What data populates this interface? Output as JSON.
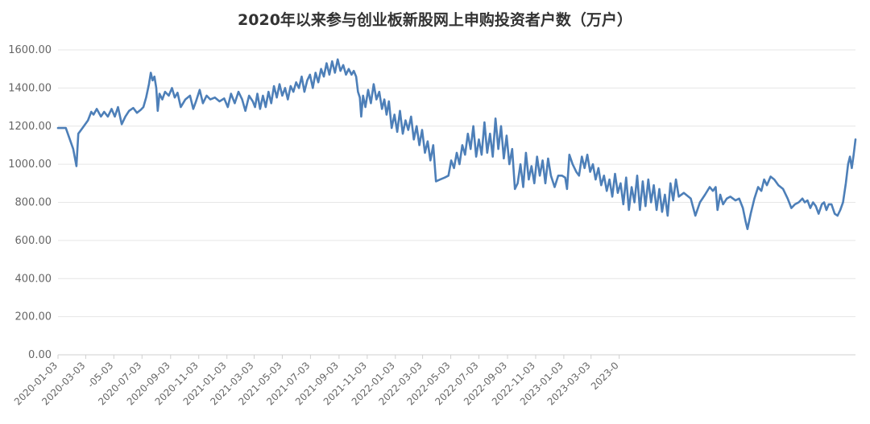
{
  "chart_data": {
    "type": "line",
    "title": "2020年以来参与创业板新股网上申购投资者户数（万户）",
    "xlabel": "",
    "ylabel": "",
    "ylim": [
      0,
      1600
    ],
    "y_ticks": [
      "0.00",
      "200.00",
      "400.00",
      "600.00",
      "800.00",
      "1000.00",
      "1200.00",
      "1400.00",
      "1600.00"
    ],
    "x_ticks": [
      "2020-01-03",
      "2020-03-03",
      "2020-05-03",
      "2020-07-03",
      "2020-09-03",
      "2020-11-03",
      "2021-01-03",
      "2021-03-03",
      "2021-05-03",
      "2021-07-03",
      "2021-09-03",
      "2021-11-03",
      "2022-01-03",
      "2022-03-03",
      "2022-05-03",
      "2022-07-03",
      "2022-09-03",
      "2022-11-03",
      "2023-01-03",
      "2023-03-03",
      "2023-05-03"
    ],
    "x_tick_labels": [
      "2020-01-03",
      "2020-03-03",
      "-05-03",
      "2020-07-03",
      "2020-09-03",
      "2020-11-03",
      "2021-01-03",
      "2021-03-03",
      "2021-05-03",
      "2021-07-03",
      "2021-09-03",
      "2021-11-03",
      "2022-01-03",
      "2022-03-03",
      "2022-05-03",
      "2022-07-03",
      "2022-09-03",
      "2022-11-03",
      "2023-01-03",
      "2023-03-03",
      "2023-0"
    ],
    "grid": true,
    "series": [
      {
        "color": "#4d7fb8",
        "points": [
          [
            "2020-01-03",
            1190
          ],
          [
            "2020-01-20",
            1190
          ],
          [
            "2020-02-05",
            1080
          ],
          [
            "2020-02-12",
            990
          ],
          [
            "2020-02-16",
            1160
          ],
          [
            "2020-02-25",
            1190
          ],
          [
            "2020-03-08",
            1230
          ],
          [
            "2020-03-15",
            1275
          ],
          [
            "2020-03-20",
            1260
          ],
          [
            "2020-03-27",
            1290
          ],
          [
            "2020-04-05",
            1250
          ],
          [
            "2020-04-12",
            1275
          ],
          [
            "2020-04-20",
            1250
          ],
          [
            "2020-04-28",
            1290
          ],
          [
            "2020-05-05",
            1250
          ],
          [
            "2020-05-12",
            1300
          ],
          [
            "2020-05-20",
            1210
          ],
          [
            "2020-05-28",
            1250
          ],
          [
            "2020-06-05",
            1280
          ],
          [
            "2020-06-14",
            1295
          ],
          [
            "2020-06-22",
            1270
          ],
          [
            "2020-06-30",
            1285
          ],
          [
            "2020-07-06",
            1300
          ],
          [
            "2020-07-12",
            1350
          ],
          [
            "2020-07-18",
            1420
          ],
          [
            "2020-07-22",
            1480
          ],
          [
            "2020-07-26",
            1440
          ],
          [
            "2020-07-30",
            1460
          ],
          [
            "2020-08-03",
            1400
          ],
          [
            "2020-08-06",
            1280
          ],
          [
            "2020-08-10",
            1370
          ],
          [
            "2020-08-16",
            1340
          ],
          [
            "2020-08-22",
            1380
          ],
          [
            "2020-08-30",
            1360
          ],
          [
            "2020-09-06",
            1400
          ],
          [
            "2020-09-12",
            1350
          ],
          [
            "2020-09-18",
            1375
          ],
          [
            "2020-09-25",
            1300
          ],
          [
            "2020-10-05",
            1340
          ],
          [
            "2020-10-15",
            1360
          ],
          [
            "2020-10-22",
            1290
          ],
          [
            "2020-10-28",
            1330
          ],
          [
            "2020-11-05",
            1390
          ],
          [
            "2020-11-12",
            1320
          ],
          [
            "2020-11-20",
            1360
          ],
          [
            "2020-11-28",
            1340
          ],
          [
            "2020-12-08",
            1350
          ],
          [
            "2020-12-18",
            1330
          ],
          [
            "2020-12-28",
            1345
          ],
          [
            "2021-01-05",
            1300
          ],
          [
            "2021-01-12",
            1370
          ],
          [
            "2021-01-20",
            1320
          ],
          [
            "2021-01-28",
            1380
          ],
          [
            "2021-02-05",
            1340
          ],
          [
            "2021-02-12",
            1280
          ],
          [
            "2021-02-20",
            1360
          ],
          [
            "2021-02-28",
            1330
          ],
          [
            "2021-03-05",
            1300
          ],
          [
            "2021-03-10",
            1370
          ],
          [
            "2021-03-16",
            1290
          ],
          [
            "2021-03-22",
            1360
          ],
          [
            "2021-03-28",
            1300
          ],
          [
            "2021-04-03",
            1380
          ],
          [
            "2021-04-09",
            1320
          ],
          [
            "2021-04-15",
            1410
          ],
          [
            "2021-04-21",
            1350
          ],
          [
            "2021-04-27",
            1420
          ],
          [
            "2021-05-03",
            1360
          ],
          [
            "2021-05-09",
            1400
          ],
          [
            "2021-05-15",
            1340
          ],
          [
            "2021-05-21",
            1410
          ],
          [
            "2021-05-27",
            1380
          ],
          [
            "2021-06-02",
            1430
          ],
          [
            "2021-06-08",
            1400
          ],
          [
            "2021-06-14",
            1460
          ],
          [
            "2021-06-20",
            1380
          ],
          [
            "2021-06-26",
            1440
          ],
          [
            "2021-07-02",
            1470
          ],
          [
            "2021-07-08",
            1400
          ],
          [
            "2021-07-14",
            1480
          ],
          [
            "2021-07-20",
            1430
          ],
          [
            "2021-07-26",
            1500
          ],
          [
            "2021-08-01",
            1460
          ],
          [
            "2021-08-07",
            1530
          ],
          [
            "2021-08-13",
            1470
          ],
          [
            "2021-08-19",
            1540
          ],
          [
            "2021-08-25",
            1480
          ],
          [
            "2021-08-31",
            1550
          ],
          [
            "2021-09-06",
            1490
          ],
          [
            "2021-09-12",
            1520
          ],
          [
            "2021-09-18",
            1470
          ],
          [
            "2021-09-24",
            1500
          ],
          [
            "2021-09-30",
            1470
          ],
          [
            "2021-10-05",
            1490
          ],
          [
            "2021-10-10",
            1460
          ],
          [
            "2021-10-14",
            1380
          ],
          [
            "2021-10-18",
            1350
          ],
          [
            "2021-10-21",
            1250
          ],
          [
            "2021-10-25",
            1360
          ],
          [
            "2021-10-30",
            1300
          ],
          [
            "2021-11-05",
            1390
          ],
          [
            "2021-11-11",
            1320
          ],
          [
            "2021-11-17",
            1420
          ],
          [
            "2021-11-23",
            1340
          ],
          [
            "2021-11-29",
            1380
          ],
          [
            "2021-12-05",
            1290
          ],
          [
            "2021-12-10",
            1340
          ],
          [
            "2021-12-15",
            1260
          ],
          [
            "2021-12-20",
            1330
          ],
          [
            "2021-12-26",
            1190
          ],
          [
            "2022-01-01",
            1260
          ],
          [
            "2022-01-07",
            1170
          ],
          [
            "2022-01-13",
            1280
          ],
          [
            "2022-01-19",
            1160
          ],
          [
            "2022-01-25",
            1230
          ],
          [
            "2022-01-31",
            1180
          ],
          [
            "2022-02-06",
            1250
          ],
          [
            "2022-02-12",
            1130
          ],
          [
            "2022-02-18",
            1200
          ],
          [
            "2022-02-24",
            1100
          ],
          [
            "2022-03-02",
            1180
          ],
          [
            "2022-03-08",
            1060
          ],
          [
            "2022-03-14",
            1120
          ],
          [
            "2022-03-20",
            1020
          ],
          [
            "2022-03-26",
            1100
          ],
          [
            "2022-04-01",
            910
          ],
          [
            "2022-04-10",
            920
          ],
          [
            "2022-04-20",
            930
          ],
          [
            "2022-04-28",
            940
          ],
          [
            "2022-05-04",
            1020
          ],
          [
            "2022-05-10",
            980
          ],
          [
            "2022-05-16",
            1060
          ],
          [
            "2022-05-22",
            1000
          ],
          [
            "2022-05-28",
            1100
          ],
          [
            "2022-06-03",
            1050
          ],
          [
            "2022-06-09",
            1160
          ],
          [
            "2022-06-15",
            1080
          ],
          [
            "2022-06-21",
            1200
          ],
          [
            "2022-06-27",
            1040
          ],
          [
            "2022-07-03",
            1130
          ],
          [
            "2022-07-09",
            1050
          ],
          [
            "2022-07-15",
            1220
          ],
          [
            "2022-07-21",
            1060
          ],
          [
            "2022-07-27",
            1160
          ],
          [
            "2022-08-02",
            1040
          ],
          [
            "2022-08-08",
            1240
          ],
          [
            "2022-08-14",
            1080
          ],
          [
            "2022-08-20",
            1200
          ],
          [
            "2022-08-26",
            1030
          ],
          [
            "2022-09-01",
            1150
          ],
          [
            "2022-09-07",
            1000
          ],
          [
            "2022-09-13",
            1080
          ],
          [
            "2022-09-19",
            870
          ],
          [
            "2022-09-25",
            900
          ],
          [
            "2022-10-01",
            1000
          ],
          [
            "2022-10-07",
            880
          ],
          [
            "2022-10-13",
            1060
          ],
          [
            "2022-10-19",
            920
          ],
          [
            "2022-10-25",
            990
          ],
          [
            "2022-10-31",
            900
          ],
          [
            "2022-11-06",
            1040
          ],
          [
            "2022-11-12",
            940
          ],
          [
            "2022-11-18",
            1020
          ],
          [
            "2022-11-24",
            900
          ],
          [
            "2022-11-30",
            1030
          ],
          [
            "2022-12-06",
            940
          ],
          [
            "2022-12-14",
            880
          ],
          [
            "2022-12-22",
            940
          ],
          [
            "2022-12-30",
            940
          ],
          [
            "2023-01-06",
            930
          ],
          [
            "2023-01-10",
            870
          ],
          [
            "2023-01-15",
            1050
          ],
          [
            "2023-01-22",
            1000
          ],
          [
            "2023-01-30",
            960
          ],
          [
            "2023-02-05",
            940
          ],
          [
            "2023-02-11",
            1040
          ],
          [
            "2023-02-17",
            980
          ],
          [
            "2023-02-23",
            1050
          ],
          [
            "2023-03-01",
            960
          ],
          [
            "2023-03-07",
            1000
          ],
          [
            "2023-03-13",
            920
          ],
          [
            "2023-03-19",
            980
          ],
          [
            "2023-03-25",
            890
          ],
          [
            "2023-03-31",
            940
          ],
          [
            "2023-04-06",
            860
          ],
          [
            "2023-04-12",
            920
          ],
          [
            "2023-04-18",
            830
          ],
          [
            "2023-04-24",
            950
          ],
          [
            "2023-04-30",
            850
          ],
          [
            "2023-05-06",
            900
          ],
          [
            "2023-05-12",
            790
          ],
          [
            "2023-05-18",
            930
          ],
          [
            "2023-05-24",
            760
          ],
          [
            "2023-05-30",
            880
          ],
          [
            "2023-06-05",
            800
          ],
          [
            "2023-06-11",
            940
          ],
          [
            "2023-06-17",
            760
          ],
          [
            "2023-06-23",
            910
          ],
          [
            "2023-06-29",
            780
          ],
          [
            "2023-07-05",
            920
          ],
          [
            "2023-07-11",
            800
          ],
          [
            "2023-07-17",
            890
          ],
          [
            "2023-07-23",
            760
          ],
          [
            "2023-07-29",
            870
          ],
          [
            "2023-08-04",
            750
          ],
          [
            "2023-08-10",
            840
          ],
          [
            "2023-08-16",
            730
          ],
          [
            "2023-08-22",
            900
          ],
          [
            "2023-08-28",
            810
          ],
          [
            "2023-09-03",
            920
          ],
          [
            "2023-09-09",
            830
          ],
          [
            "2023-09-20",
            850
          ],
          [
            "2023-10-05",
            820
          ],
          [
            "2023-10-15",
            730
          ],
          [
            "2023-10-25",
            800
          ],
          [
            "2023-11-05",
            840
          ],
          [
            "2023-11-15",
            880
          ],
          [
            "2023-11-22",
            860
          ],
          [
            "2023-11-28",
            880
          ],
          [
            "2023-12-02",
            760
          ],
          [
            "2023-12-08",
            840
          ],
          [
            "2023-12-14",
            790
          ],
          [
            "2023-12-22",
            820
          ],
          [
            "2023-12-30",
            830
          ],
          [
            "2024-01-10",
            810
          ],
          [
            "2024-01-18",
            820
          ],
          [
            "2024-01-26",
            770
          ],
          [
            "2024-02-01",
            700
          ],
          [
            "2024-02-05",
            660
          ],
          [
            "2024-02-12",
            740
          ],
          [
            "2024-02-20",
            820
          ],
          [
            "2024-02-28",
            880
          ],
          [
            "2024-03-06",
            860
          ],
          [
            "2024-03-12",
            920
          ],
          [
            "2024-03-18",
            890
          ],
          [
            "2024-03-26",
            935
          ],
          [
            "2024-04-03",
            920
          ],
          [
            "2024-04-12",
            890
          ],
          [
            "2024-04-22",
            870
          ],
          [
            "2024-05-02",
            820
          ],
          [
            "2024-05-10",
            770
          ],
          [
            "2024-05-18",
            790
          ],
          [
            "2024-05-26",
            800
          ],
          [
            "2024-06-03",
            820
          ],
          [
            "2024-06-08",
            800
          ],
          [
            "2024-06-14",
            810
          ],
          [
            "2024-06-20",
            770
          ],
          [
            "2024-06-26",
            800
          ],
          [
            "2024-07-02",
            780
          ],
          [
            "2024-07-08",
            740
          ],
          [
            "2024-07-15",
            790
          ],
          [
            "2024-07-20",
            800
          ],
          [
            "2024-07-25",
            760
          ],
          [
            "2024-07-30",
            790
          ],
          [
            "2024-08-05",
            790
          ],
          [
            "2024-08-12",
            740
          ],
          [
            "2024-08-18",
            730
          ],
          [
            "2024-08-24",
            760
          ],
          [
            "2024-08-30",
            800
          ],
          [
            "2024-09-05",
            900
          ],
          [
            "2024-09-10",
            1000
          ],
          [
            "2024-09-14",
            1040
          ],
          [
            "2024-09-18",
            980
          ],
          [
            "2024-09-22",
            1050
          ],
          [
            "2024-09-26",
            1130
          ]
        ]
      }
    ]
  }
}
